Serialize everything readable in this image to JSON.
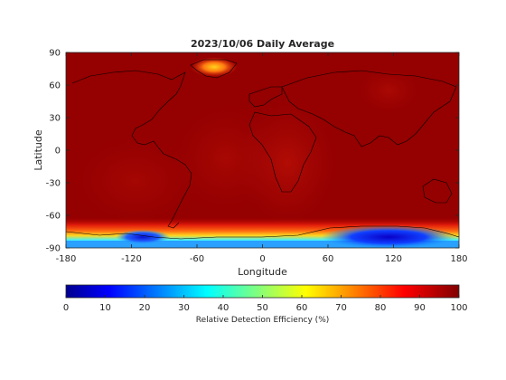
{
  "chart_data": {
    "type": "heatmap",
    "title": "2023/10/06 Daily Average",
    "xlabel": "Longitude",
    "ylabel": "Latitude",
    "xlim": [
      -180,
      180
    ],
    "ylim": [
      -90,
      90
    ],
    "xticks": [
      -180,
      -120,
      -60,
      0,
      60,
      120,
      180
    ],
    "yticks": [
      90,
      60,
      30,
      0,
      -30,
      -60,
      -90
    ],
    "xtick_labels": [
      "-180",
      "-120",
      "-60",
      "0",
      "60",
      "120",
      "180"
    ],
    "ytick_labels": [
      "90",
      "60",
      "30",
      "0",
      "-30",
      "-60",
      "-90"
    ],
    "colorbar": {
      "label": "Relative Detection Efficiency (%)",
      "range": [
        0,
        100
      ],
      "ticks": [
        0,
        10,
        20,
        30,
        40,
        50,
        60,
        70,
        80,
        90,
        100
      ],
      "tick_labels": [
        "0",
        "10",
        "20",
        "30",
        "40",
        "50",
        "60",
        "70",
        "80",
        "90",
        "100"
      ],
      "colormap": "jet"
    },
    "grid": false,
    "field_summary": {
      "background_value": 98,
      "low_value_regions": [
        {
          "region": "Antarctica, 90E-150E",
          "lat_range": [
            -90,
            -77
          ],
          "min_value": 5
        },
        {
          "region": "Antarctica, 130W-100W",
          "lat_range": [
            -85,
            -79
          ],
          "min_value": 10
        },
        {
          "region": "Antarctic coast band",
          "lat_range": [
            -90,
            -72
          ],
          "min_value": 25
        },
        {
          "region": "Southern Ocean band",
          "lat_range": [
            -72,
            -62
          ],
          "min_value": 85
        },
        {
          "region": "Greenland",
          "lat_range": [
            60,
            84
          ],
          "min_value": 80
        }
      ]
    },
    "colors": {
      "high": "#800000",
      "frame": "#262626"
    }
  }
}
